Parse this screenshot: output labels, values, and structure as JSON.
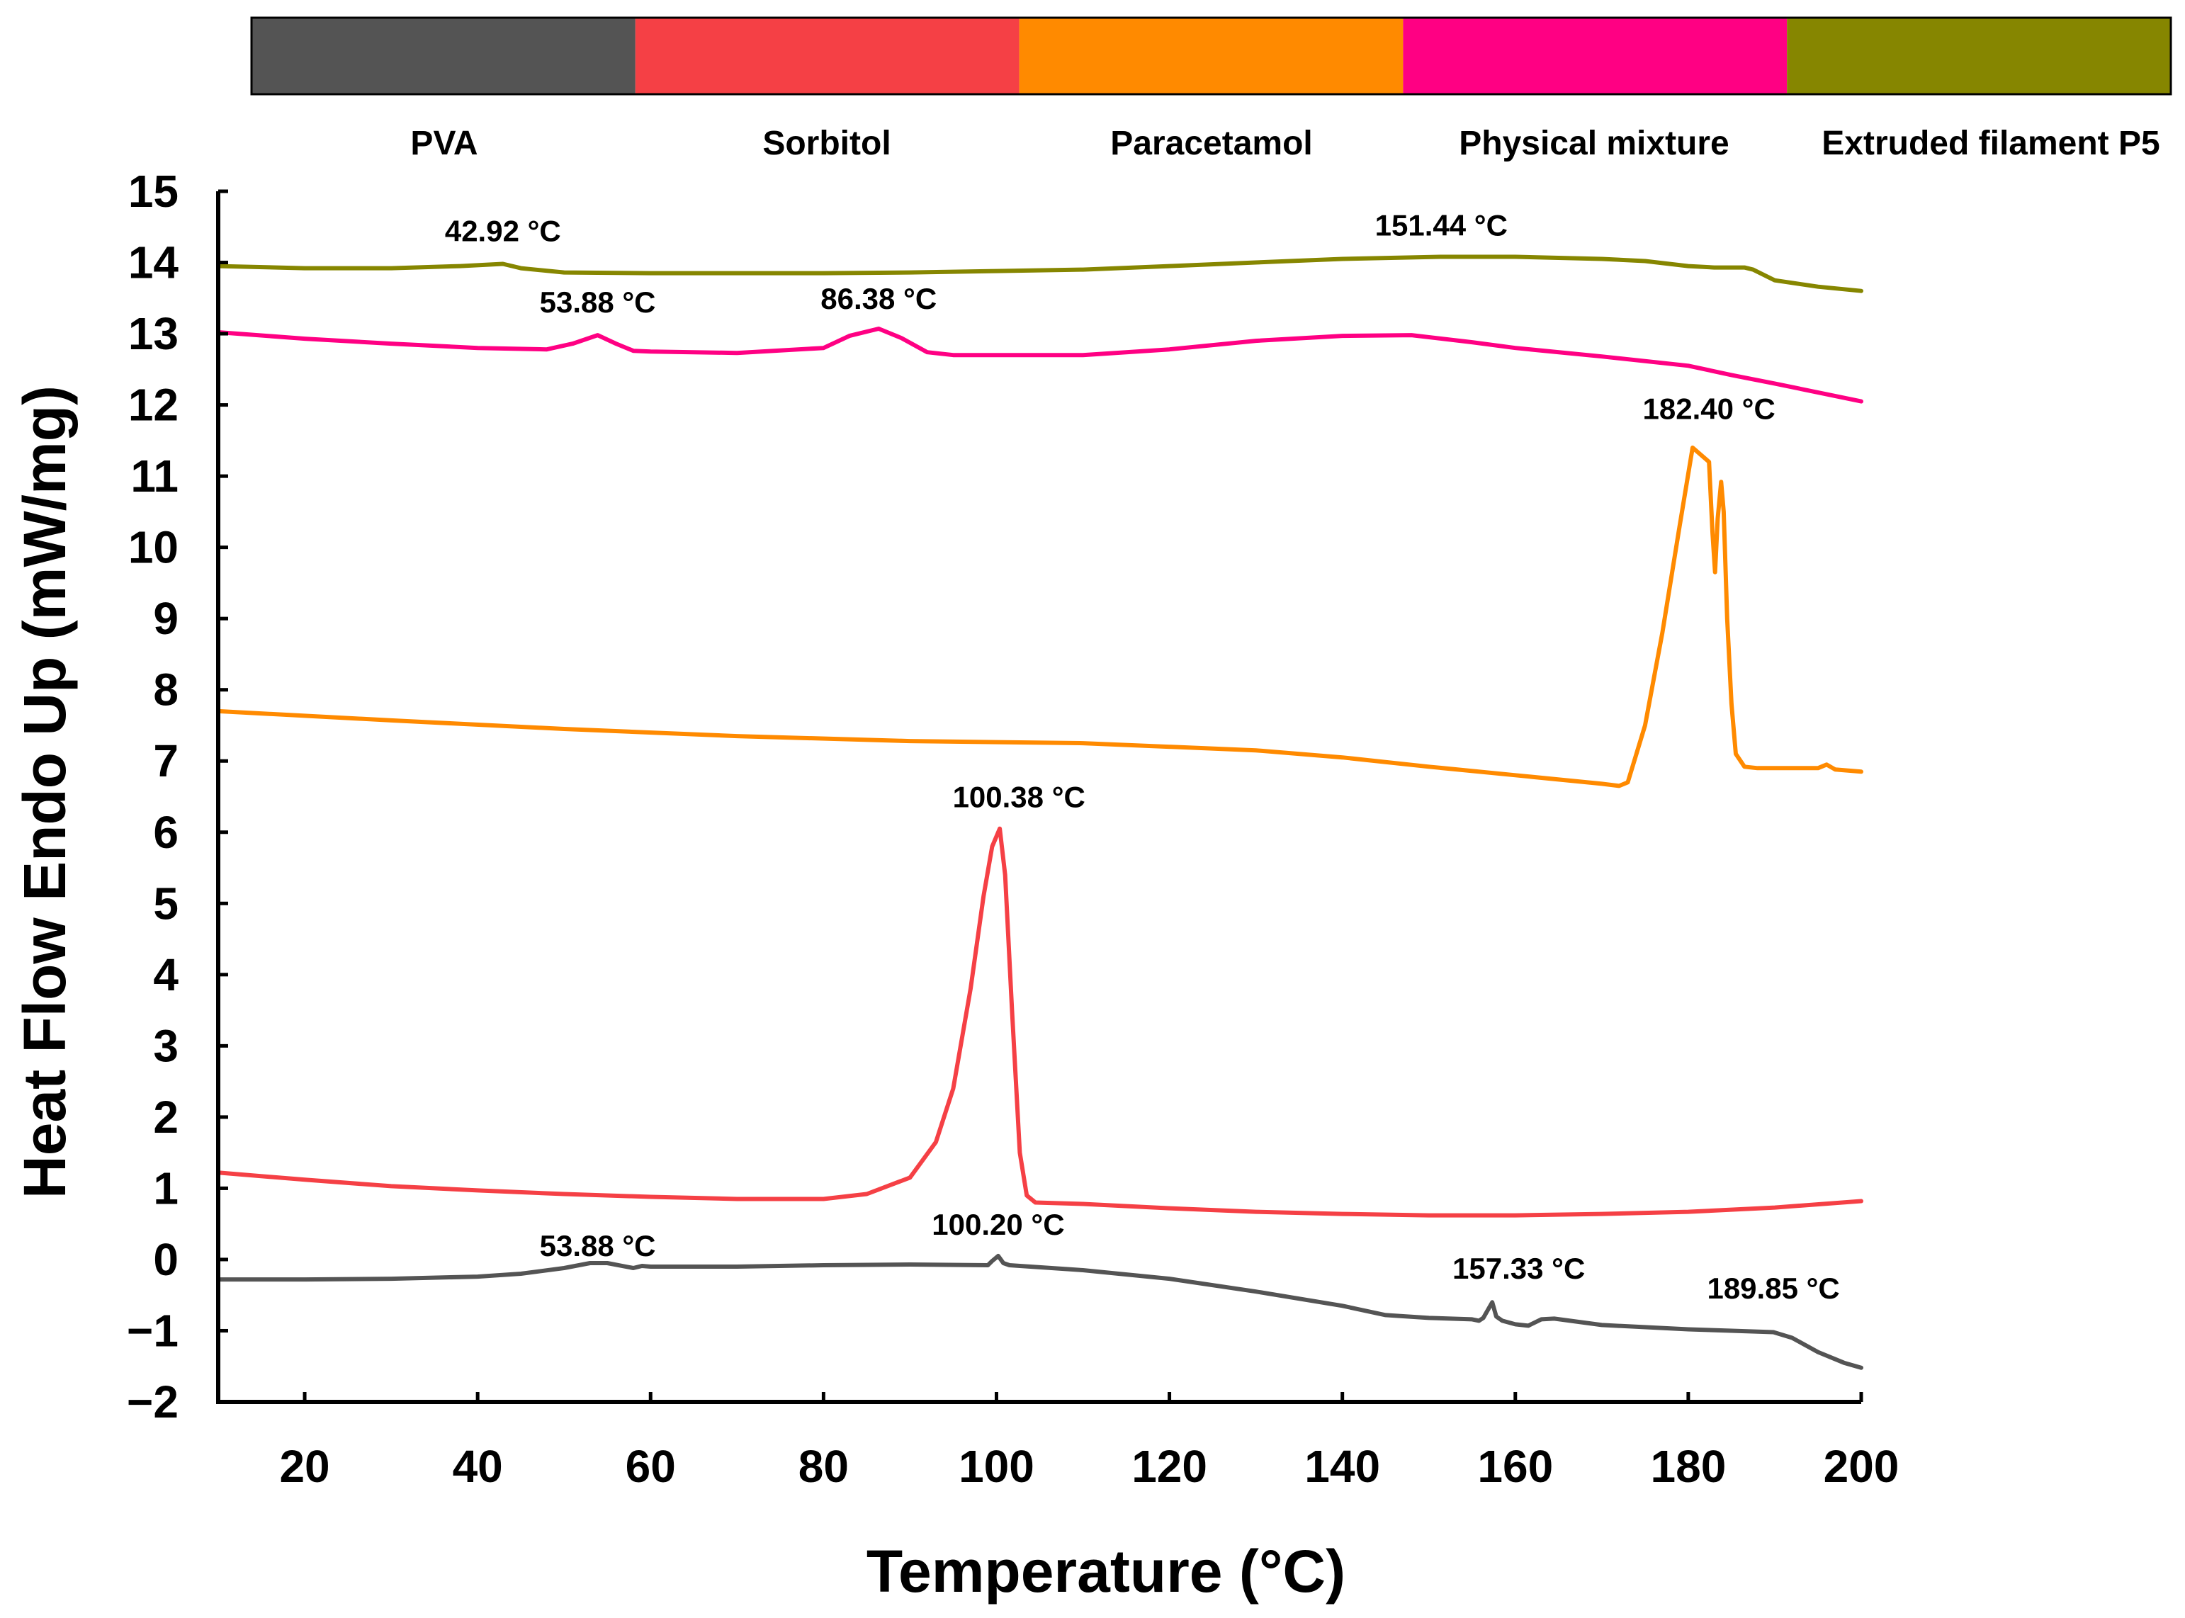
{
  "chart_data": {
    "type": "line",
    "title": "",
    "xlabel": "Temperature (°C)",
    "ylabel": "Heat Flow Endo Up (mW/mg)",
    "xlim": [
      10,
      200
    ],
    "ylim": [
      -2,
      15
    ],
    "xticks": [
      20,
      40,
      60,
      80,
      100,
      120,
      140,
      160,
      180,
      200
    ],
    "yticks": [
      15,
      14,
      13,
      12,
      11,
      10,
      9,
      8,
      7,
      6,
      5,
      4,
      3,
      2,
      1,
      0,
      -1,
      -2
    ],
    "ytick_labels": [
      "15",
      "14",
      "13",
      "12",
      "11",
      "10",
      "9",
      "8",
      "7",
      "6",
      "5",
      "4",
      "3",
      "2",
      "1",
      "0",
      "−1",
      "−2"
    ],
    "grid": false,
    "legend_position": "top",
    "legend": [
      "PVA",
      "Sorbitol",
      "Paracetamol",
      "Physical mixture",
      "Extruded filament P5"
    ],
    "series": [
      {
        "name": "PVA",
        "color": "#545454",
        "x": [
          10,
          20,
          30,
          40,
          45,
          50,
          53,
          55,
          58,
          59,
          60,
          70,
          80,
          90,
          99,
          99.5,
          100.2,
          100.8,
          101.5,
          110,
          120,
          130,
          140,
          145,
          150,
          155,
          155.8,
          156.3,
          157.33,
          157.8,
          158.5,
          160,
          161.5,
          163,
          164.5,
          170,
          180,
          185,
          189.85,
          192,
          195,
          198,
          200
        ],
        "y": [
          -0.28,
          -0.28,
          -0.27,
          -0.24,
          -0.2,
          -0.12,
          -0.05,
          -0.05,
          -0.12,
          -0.09,
          -0.1,
          -0.1,
          -0.08,
          -0.07,
          -0.08,
          -0.02,
          0.05,
          -0.05,
          -0.08,
          -0.15,
          -0.27,
          -0.45,
          -0.65,
          -0.78,
          -0.82,
          -0.84,
          -0.86,
          -0.82,
          -0.6,
          -0.8,
          -0.86,
          -0.91,
          -0.93,
          -0.84,
          -0.83,
          -0.92,
          -0.98,
          -1.0,
          -1.02,
          -1.1,
          -1.3,
          -1.45,
          -1.52
        ]
      },
      {
        "name": "Sorbitol",
        "color": "#f54045",
        "x": [
          10,
          20,
          30,
          40,
          50,
          60,
          70,
          80,
          85,
          90,
          93,
          95,
          97,
          98.5,
          99.5,
          100.38,
          101,
          101.8,
          102.7,
          103.5,
          104.5,
          110,
          120,
          130,
          140,
          150,
          160,
          170,
          180,
          190,
          200
        ],
        "y": [
          1.22,
          1.12,
          1.03,
          0.97,
          0.92,
          0.88,
          0.85,
          0.85,
          0.92,
          1.15,
          1.65,
          2.4,
          3.8,
          5.1,
          5.8,
          6.05,
          5.4,
          3.5,
          1.5,
          0.9,
          0.8,
          0.78,
          0.72,
          0.67,
          0.64,
          0.62,
          0.62,
          0.64,
          0.67,
          0.73,
          0.82
        ]
      },
      {
        "name": "Paracetamol",
        "color": "#ff8a00",
        "x": [
          10,
          30,
          50,
          70,
          90,
          110,
          130,
          140,
          150,
          160,
          170,
          172,
          173,
          175,
          177,
          179,
          180.5,
          182.4,
          182.8,
          183.1,
          183.4,
          183.8,
          184.1,
          184.5,
          185,
          185.5,
          186.5,
          188,
          190,
          195,
          196,
          197,
          200
        ],
        "y": [
          7.7,
          7.57,
          7.45,
          7.35,
          7.28,
          7.25,
          7.15,
          7.05,
          6.92,
          6.8,
          6.68,
          6.65,
          6.7,
          7.5,
          8.8,
          10.3,
          11.4,
          11.2,
          10.2,
          9.65,
          10.4,
          10.92,
          10.5,
          9.0,
          7.8,
          7.1,
          6.92,
          6.9,
          6.9,
          6.9,
          6.95,
          6.88,
          6.85
        ]
      },
      {
        "name": "Physical mixture",
        "color": "#ff0083",
        "x": [
          10,
          20,
          30,
          40,
          48,
          51,
          53.88,
          56,
          58,
          60,
          70,
          80,
          83,
          86.38,
          89,
          92,
          95,
          100,
          110,
          120,
          130,
          140,
          148,
          155,
          160,
          170,
          180,
          185,
          190,
          200
        ],
        "y": [
          13.02,
          12.93,
          12.86,
          12.8,
          12.78,
          12.86,
          12.98,
          12.86,
          12.76,
          12.75,
          12.73,
          12.8,
          12.97,
          13.07,
          12.94,
          12.74,
          12.7,
          12.7,
          12.7,
          12.78,
          12.9,
          12.97,
          12.98,
          12.88,
          12.8,
          12.68,
          12.55,
          12.42,
          12.3,
          12.05
        ]
      },
      {
        "name": "Extruded filament P5",
        "color": "#868600",
        "x": [
          10,
          20,
          30,
          38,
          42.92,
          45,
          50,
          60,
          70,
          80,
          90,
          100,
          110,
          120,
          130,
          140,
          151.44,
          160,
          170,
          175,
          180,
          183,
          185,
          186.5,
          187.5,
          190,
          195,
          200
        ],
        "y": [
          13.95,
          13.92,
          13.92,
          13.95,
          13.98,
          13.92,
          13.86,
          13.85,
          13.85,
          13.85,
          13.86,
          13.88,
          13.9,
          13.95,
          14.0,
          14.05,
          14.08,
          14.08,
          14.05,
          14.02,
          13.95,
          13.93,
          13.93,
          13.93,
          13.9,
          13.75,
          13.66,
          13.6
        ]
      }
    ],
    "annotations": [
      {
        "text": "42.92 °C",
        "x": 42.92,
        "y": 14.3,
        "series": "Extruded filament P5"
      },
      {
        "text": "151.44 °C",
        "x": 151.44,
        "y": 14.38,
        "series": "Extruded filament P5"
      },
      {
        "text": "53.88 °C",
        "x": 53.88,
        "y": 13.3,
        "series": "Physical mixture"
      },
      {
        "text": "86.38 °C",
        "x": 86.38,
        "y": 13.35,
        "series": "Physical mixture"
      },
      {
        "text": "182.40 °C",
        "x": 182.4,
        "y": 11.8,
        "series": "Paracetamol"
      },
      {
        "text": "100.38 °C",
        "x": 102.6,
        "y": 6.35,
        "series": "Sorbitol"
      },
      {
        "text": "53.88 °C",
        "x": 53.88,
        "y": 0.05,
        "series": "PVA"
      },
      {
        "text": "100.20 °C",
        "x": 100.2,
        "y": 0.35,
        "series": "PVA"
      },
      {
        "text": "157.33 °C",
        "x": 160.4,
        "y": -0.27,
        "series": "PVA"
      },
      {
        "text": "189.85 °C",
        "x": 189.85,
        "y": -0.55,
        "series": "PVA"
      }
    ]
  }
}
